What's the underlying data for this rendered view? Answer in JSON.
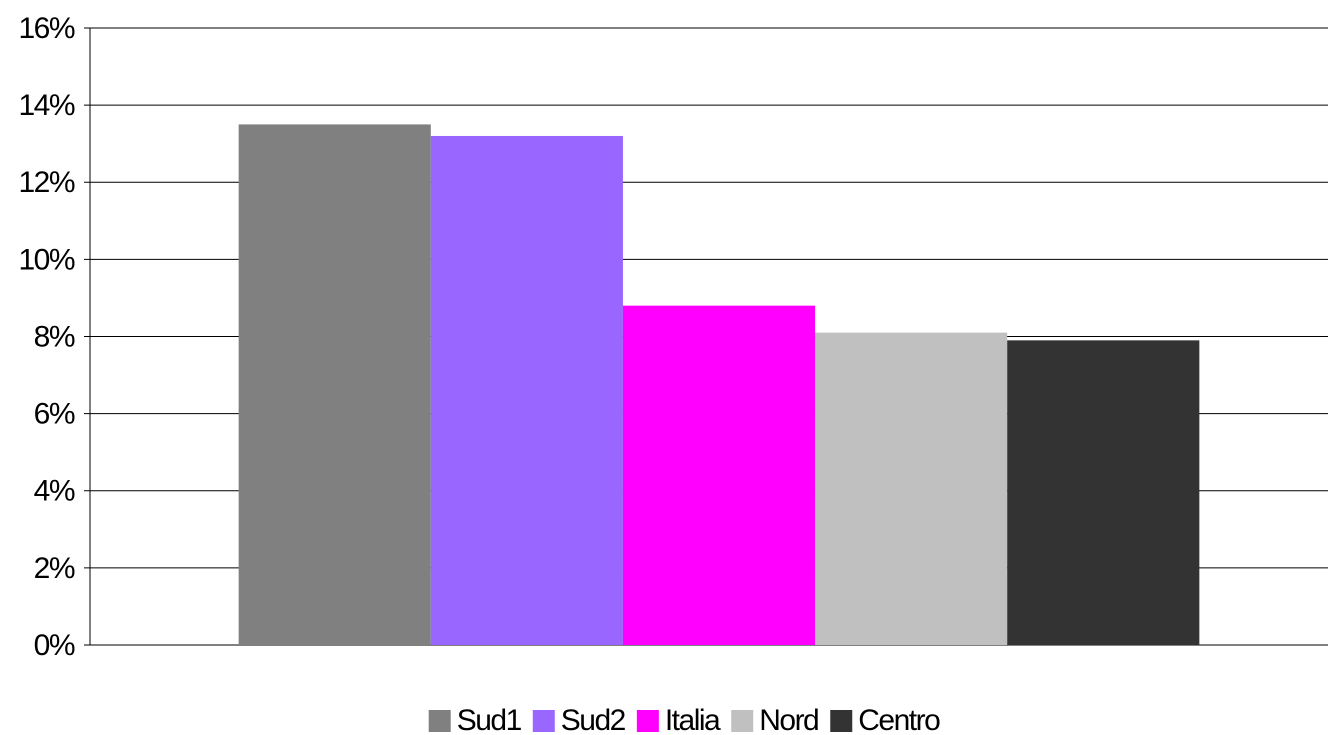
{
  "chart_data": {
    "type": "bar",
    "categories": [
      null
    ],
    "series": [
      {
        "name": "Sud1",
        "color": "#808080",
        "values": [
          13.5
        ]
      },
      {
        "name": "Sud2",
        "color": "#9966ff",
        "values": [
          13.2
        ]
      },
      {
        "name": "Italia",
        "color": "#ff00ff",
        "values": [
          8.8
        ]
      },
      {
        "name": "Nord",
        "color": "#c0c0c0",
        "values": [
          8.1
        ]
      },
      {
        "name": "Centro",
        "color": "#333333",
        "values": [
          7.9
        ]
      }
    ],
    "ylim": [
      0,
      16
    ],
    "yticks": [
      {
        "value": 0,
        "label": "0%"
      },
      {
        "value": 2,
        "label": "2%"
      },
      {
        "value": 4,
        "label": "4%"
      },
      {
        "value": 6,
        "label": "6%"
      },
      {
        "value": 8,
        "label": "8%"
      },
      {
        "value": 10,
        "label": "10%"
      },
      {
        "value": 12,
        "label": "12%"
      },
      {
        "value": 14,
        "label": "14%"
      },
      {
        "value": 16,
        "label": "16%"
      }
    ],
    "grid": true,
    "legend": "bottom"
  }
}
